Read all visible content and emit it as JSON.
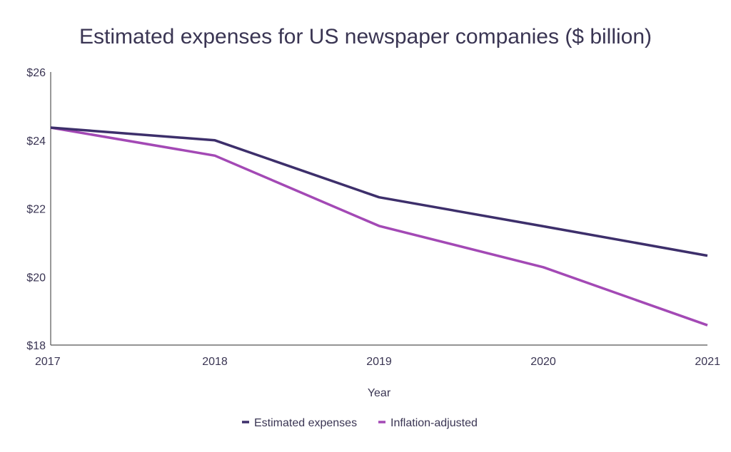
{
  "chart_data": {
    "type": "line",
    "title": "Estimated expenses for US newspaper companies ($ billion)",
    "xlabel": "Year",
    "ylabel": "",
    "categories": [
      "2017",
      "2018",
      "2019",
      "2020",
      "2021"
    ],
    "ylim": [
      18,
      26
    ],
    "yticks": [
      18,
      20,
      22,
      24,
      26
    ],
    "ytick_labels": [
      "$18",
      "$20",
      "$22",
      "$24",
      "$26"
    ],
    "grid": false,
    "legend_position": "bottom-center",
    "series": [
      {
        "name": "Estimated expenses",
        "color": "#3d2f6b",
        "values": [
          24.37,
          24.0,
          22.33,
          21.48,
          20.62
        ]
      },
      {
        "name": "Inflation-adjusted",
        "color": "#a349b5",
        "values": [
          24.37,
          23.55,
          21.49,
          20.28,
          18.58
        ]
      }
    ]
  }
}
